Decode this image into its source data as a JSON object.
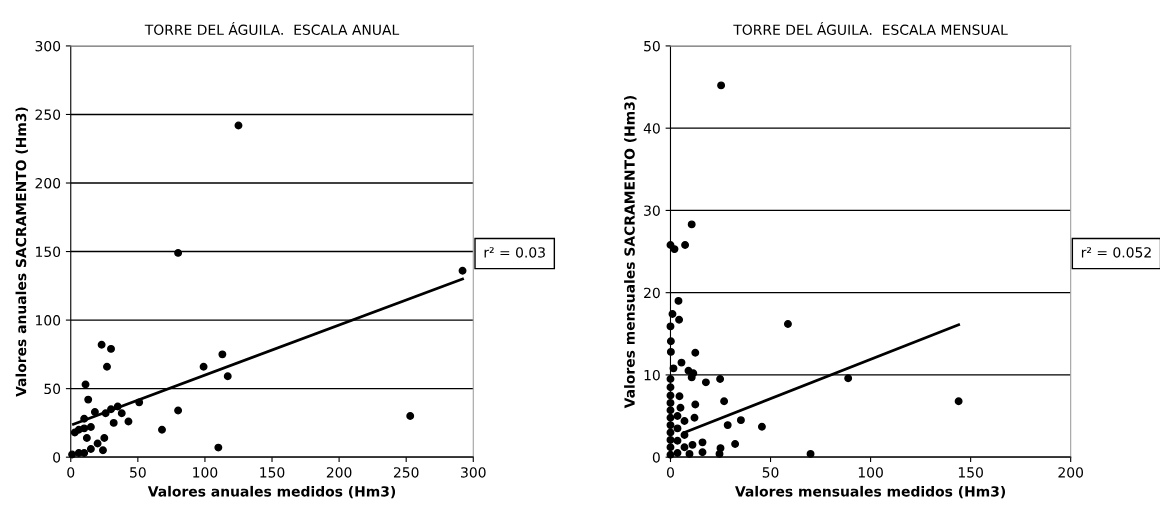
{
  "chart_data": [
    {
      "type": "scatter",
      "title": "TORRE DEL ÁGUILA.  ESCALA ANUAL",
      "xlabel": "Valores anuales medidos (Hm3)",
      "ylabel": "Valores anuales SACRAMENTO (Hm3)",
      "annotations": [
        "r² = 0.03"
      ],
      "xlim": [
        0,
        300
      ],
      "ylim": [
        0,
        300
      ],
      "xticks": [
        0,
        50,
        100,
        150,
        200,
        250,
        300
      ],
      "yticks": [
        0,
        50,
        100,
        150,
        200,
        250,
        300
      ],
      "grid": "y",
      "marker": "circle",
      "series": [
        {
          "color": "#000000",
          "x": [
            1,
            10,
            6,
            3,
            10,
            6,
            11,
            13,
            10,
            15,
            12,
            18,
            15,
            20,
            23,
            25,
            24,
            27,
            30,
            26,
            30,
            32,
            35,
            38,
            43,
            51,
            68,
            80,
            80,
            99,
            110,
            113,
            117,
            125,
            253,
            292
          ],
          "values": [
            2,
            3,
            3,
            18,
            21,
            20,
            53,
            42,
            28,
            22,
            14,
            33,
            6,
            10,
            82,
            14,
            5,
            66,
            79,
            32,
            35,
            25,
            37,
            32,
            26,
            40,
            20,
            149,
            34,
            66,
            7,
            75,
            59,
            242,
            30,
            136
          ]
        },
        {
          "type": "line",
          "color": "#000000",
          "marker": "none",
          "x": [
            2,
            292
          ],
          "values": [
            24,
            130
          ]
        }
      ]
    },
    {
      "type": "scatter",
      "title": "TORRE DEL ÁGUILA.  ESCALA MENSUAL",
      "xlabel": "Valores mensuales medidos (Hm3)",
      "ylabel": "Valores mensuales SACRAMENTO (Hm3)",
      "annotations": [
        "r² = 0.052"
      ],
      "xlim": [
        0,
        200
      ],
      "ylim": [
        0,
        50
      ],
      "xticks": [
        0,
        50,
        100,
        150,
        200
      ],
      "yticks": [
        0,
        10,
        20,
        30,
        40,
        50
      ],
      "grid": "y",
      "marker": "circle",
      "series": [
        {
          "color": "#000000",
          "x": [
            25.3,
            10.6,
            0,
            7.3,
            2,
            58.7,
            12.4,
            24.8,
            17.7,
            26.8,
            12.4,
            12,
            28.6,
            35.2,
            45.7,
            32.3,
            70,
            16,
            16,
            25,
            24.5,
            10.6,
            11.4,
            5.5,
            4.3,
            0.2,
            0.2,
            0,
            1,
            4,
            4.5,
            5,
            9,
            88.8,
            144,
            0,
            0,
            0,
            0,
            0,
            0,
            0,
            0,
            0,
            0,
            0,
            3.5,
            3.5,
            3.5,
            3.5,
            7,
            7,
            7,
            11,
            9.5,
            1.5
          ],
          "values": [
            45.2,
            28.3,
            25.8,
            25.8,
            25.3,
            16.2,
            12.7,
            9.5,
            9.1,
            6.8,
            6.4,
            4.8,
            3.9,
            4.5,
            3.7,
            1.6,
            0.4,
            1.8,
            0.6,
            1.1,
            0.4,
            9.7,
            10.2,
            11.5,
            16.7,
            14.1,
            12.8,
            15.9,
            17.4,
            19,
            7.4,
            6,
            10.5,
            9.6,
            6.8,
            0.3,
            1.2,
            2.1,
            3,
            3.9,
            4.8,
            5.7,
            6.6,
            7.5,
            8.5,
            9.5,
            0.5,
            2,
            3.5,
            5,
            1.2,
            2.7,
            4.4,
            1.5,
            0.4,
            10.8
          ]
        },
        {
          "type": "line",
          "color": "#000000",
          "marker": "none",
          "x": [
            7,
            144
          ],
          "values": [
            3.0,
            16.1
          ]
        }
      ]
    }
  ]
}
